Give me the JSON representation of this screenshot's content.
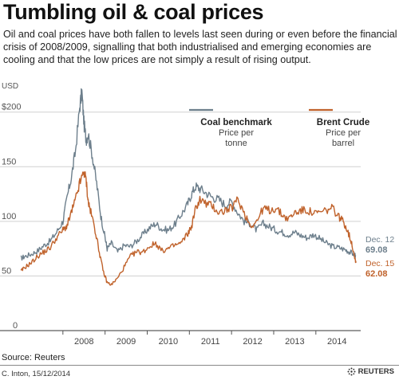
{
  "title": "Tumbling oil & coal prices",
  "subtitle": "Oil and coal prices have both fallen to levels last seen during or even before the financial crisis of 2008/2009, signalling that both industrialised and emerging economies are cooling and that the low prices are not simply a result of rising output.",
  "source": "Source: Reuters",
  "credit": "C. Inton, 15/12/2014",
  "logo_text": "REUTERS",
  "colors": {
    "coal": "#6d7f8c",
    "brent": "#c0622b",
    "grid": "#d0d0d0",
    "axis": "#555555"
  },
  "chart_data": {
    "type": "line",
    "ylabel": "USD",
    "ylim": [
      0,
      210
    ],
    "yticks": [
      0,
      50,
      100,
      150,
      200
    ],
    "ytick_labels": [
      "0",
      "50",
      "100",
      "150",
      "$200"
    ],
    "xlim": [
      2007.0,
      2014.95
    ],
    "xticks": [
      2008.5,
      2009.5,
      2010.5,
      2011.5,
      2012.5,
      2013.5,
      2014.5
    ],
    "xtick_labels": [
      "2008",
      "2009",
      "2010",
      "2011",
      "2012",
      "2013",
      "2014"
    ],
    "legend": [
      {
        "name": "Coal benchmark",
        "unit": "Price per\ntonne"
      },
      {
        "name": "Brent Crude",
        "unit": "Price per\nbarrel"
      }
    ],
    "series": [
      {
        "name": "Coal benchmark",
        "end_label": "Dec. 12",
        "end_value_label": "69.08",
        "x": [
          2007.0,
          2007.1,
          2007.25,
          2007.4,
          2007.55,
          2007.7,
          2007.85,
          2008.0,
          2008.1,
          2008.2,
          2008.3,
          2008.4,
          2008.45,
          2008.5,
          2008.55,
          2008.6,
          2008.7,
          2008.8,
          2008.9,
          2009.0,
          2009.05,
          2009.15,
          2009.3,
          2009.45,
          2009.6,
          2009.75,
          2009.9,
          2010.05,
          2010.2,
          2010.35,
          2010.5,
          2010.65,
          2010.8,
          2010.95,
          2011.05,
          2011.15,
          2011.25,
          2011.4,
          2011.55,
          2011.7,
          2011.85,
          2012.0,
          2012.15,
          2012.3,
          2012.45,
          2012.6,
          2012.75,
          2012.9,
          2013.05,
          2013.2,
          2013.35,
          2013.5,
          2013.65,
          2013.8,
          2013.95,
          2014.1,
          2014.25,
          2014.4,
          2014.55,
          2014.7,
          2014.8,
          2014.9,
          2014.94
        ],
        "values": [
          66,
          68,
          70,
          73,
          78,
          82,
          90,
          100,
          122,
          140,
          165,
          205,
          218,
          190,
          175,
          180,
          160,
          135,
          105,
          85,
          75,
          80,
          72,
          78,
          77,
          82,
          88,
          94,
          98,
          93,
          92,
          97,
          106,
          115,
          125,
          132,
          130,
          126,
          122,
          120,
          115,
          118,
          108,
          100,
          98,
          92,
          98,
          95,
          92,
          90,
          88,
          90,
          87,
          85,
          88,
          84,
          80,
          77,
          76,
          74,
          72,
          70,
          69.08
        ]
      },
      {
        "name": "Brent Crude",
        "end_label": "Dec. 15",
        "end_value_label": "62.08",
        "x": [
          2007.0,
          2007.1,
          2007.25,
          2007.4,
          2007.55,
          2007.7,
          2007.85,
          2008.0,
          2008.1,
          2008.2,
          2008.3,
          2008.4,
          2008.5,
          2008.55,
          2008.6,
          2008.65,
          2008.75,
          2008.85,
          2008.95,
          2009.05,
          2009.15,
          2009.3,
          2009.45,
          2009.6,
          2009.75,
          2009.9,
          2010.05,
          2010.2,
          2010.35,
          2010.5,
          2010.65,
          2010.8,
          2010.95,
          2011.05,
          2011.15,
          2011.25,
          2011.4,
          2011.55,
          2011.7,
          2011.85,
          2012.0,
          2012.15,
          2012.3,
          2012.45,
          2012.6,
          2012.75,
          2012.9,
          2013.05,
          2013.2,
          2013.35,
          2013.5,
          2013.65,
          2013.8,
          2013.95,
          2014.1,
          2014.25,
          2014.4,
          2014.55,
          2014.65,
          2014.75,
          2014.85,
          2014.92,
          2014.95
        ],
        "values": [
          54,
          58,
          62,
          68,
          72,
          76,
          85,
          92,
          96,
          108,
          120,
          135,
          145,
          138,
          118,
          110,
          95,
          75,
          55,
          44,
          42,
          48,
          58,
          68,
          72,
          72,
          77,
          80,
          73,
          75,
          78,
          80,
          88,
          95,
          112,
          120,
          116,
          114,
          108,
          110,
          112,
          120,
          108,
          96,
          100,
          112,
          110,
          112,
          106,
          102,
          108,
          110,
          110,
          107,
          108,
          110,
          112,
          104,
          100,
          92,
          80,
          68,
          62.08
        ]
      }
    ]
  }
}
